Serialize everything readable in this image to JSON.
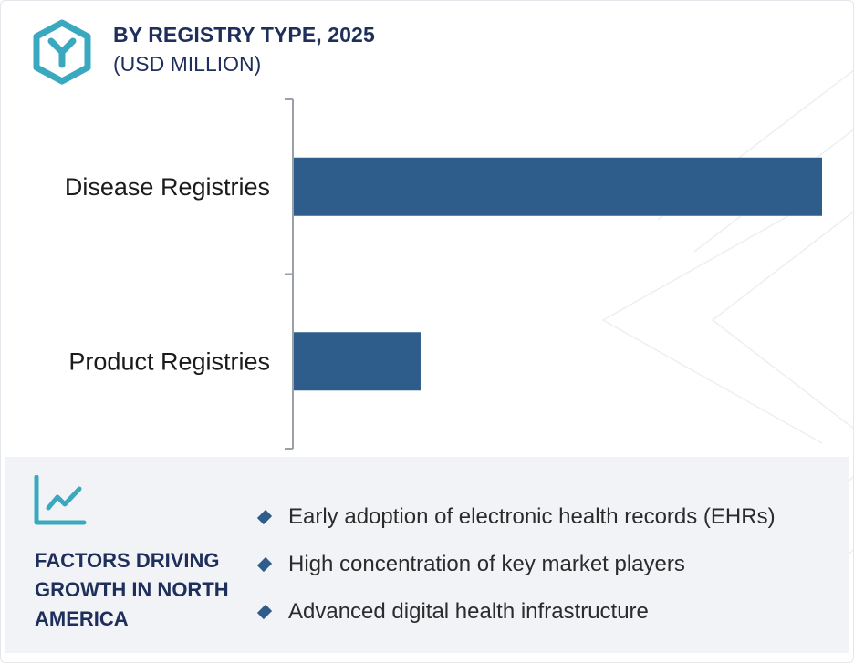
{
  "header": {
    "title": "BY REGISTRY TYPE, 2025",
    "subtitle": "(USD MILLION)",
    "logo_icon": "hexagon-y-logo-icon"
  },
  "chart_data": {
    "type": "bar",
    "orientation": "horizontal",
    "categories": [
      "Disease Registries",
      "Product Registries"
    ],
    "values": [
      100,
      24
    ],
    "title": "BY REGISTRY TYPE, 2025",
    "subtitle": "(USD MILLION)",
    "xlabel": "",
    "ylabel": "",
    "xlim": [
      0,
      100
    ],
    "grid": false,
    "legend": "none",
    "bar_color": "#2e5d8c",
    "axis_color": "#9aa0a6"
  },
  "factors": {
    "icon": "line-chart-trend-icon",
    "title": "FACTORS DRIVING GROWTH IN NORTH AMERICA",
    "items": [
      "Early adoption of electronic health records (EHRs)",
      "High concentration of key market players",
      "Advanced digital health infrastructure"
    ]
  },
  "colors": {
    "navy": "#1d2f5a",
    "bar": "#2e5d8c",
    "teal": "#3aa9c0",
    "panel_bg": "#f2f3f6"
  }
}
